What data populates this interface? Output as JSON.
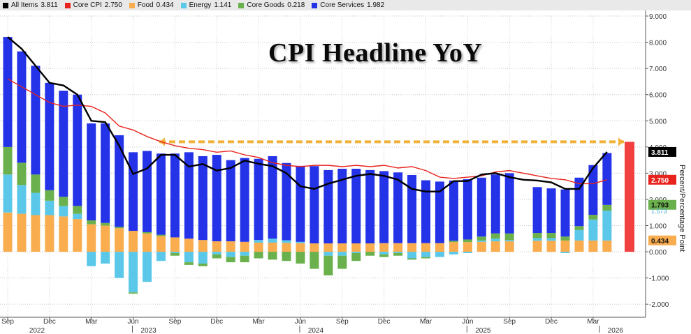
{
  "legend": [
    {
      "label": "All Items",
      "value": "3.811",
      "color": "#000000"
    },
    {
      "label": "Core CPI",
      "value": "2.750",
      "color": "#e8231d"
    },
    {
      "label": "Food",
      "value": "0.434",
      "color": "#f9ad4f"
    },
    {
      "label": "Energy",
      "value": "1.141",
      "color": "#5bc8ea"
    },
    {
      "label": "Core Goods",
      "value": "0.218",
      "color": "#6ab04c"
    },
    {
      "label": "Core Services",
      "value": "1.982",
      "color": "#2432e8"
    }
  ],
  "title": "CPI Headline YoY",
  "ylabel": "Percent/Percentage Point",
  "chart_data": {
    "type": "bar",
    "stacked": true,
    "ylim": [
      -2.5,
      9.0
    ],
    "yticks": [
      "9.000",
      "8.000",
      "7.000",
      "6.000",
      "5.000",
      "4.000",
      "3.000",
      "2.000",
      "1.000",
      "0.000",
      "-1.000",
      "-2.000"
    ],
    "ytick_values": [
      9,
      8,
      7,
      6,
      5,
      4,
      3,
      2,
      1,
      0,
      -1,
      -2
    ],
    "month_labels": [
      "Sep",
      "Dec",
      "Mar",
      "Jun",
      "Sep",
      "Dec",
      "Mar",
      "Jun",
      "Sep",
      "Dec",
      "Mar",
      "Jun",
      "Sep",
      "Dec",
      "Mar"
    ],
    "month_label_index": [
      0,
      3,
      6,
      9,
      12,
      15,
      18,
      21,
      24,
      27,
      30,
      33,
      36,
      39,
      42
    ],
    "year_labels": [
      "2022",
      "2023",
      "2024",
      "2025",
      "2026"
    ],
    "year_label_index": [
      1,
      9,
      21,
      33,
      42.5
    ],
    "periods": 44,
    "series": [
      {
        "name": "Food",
        "color": "#f9ad4f",
        "values": [
          1.5,
          1.45,
          1.4,
          1.4,
          1.35,
          1.25,
          1.05,
          1.0,
          0.9,
          0.8,
          0.7,
          0.6,
          0.55,
          0.5,
          0.45,
          0.4,
          0.4,
          0.38,
          0.35,
          0.35,
          0.34,
          0.33,
          0.32,
          0.32,
          0.32,
          0.32,
          0.32,
          0.33,
          0.33,
          0.33,
          0.33,
          0.33,
          0.37,
          0.37,
          0.38,
          0.4,
          0.4,
          null,
          0.42,
          0.42,
          0.43,
          0.43,
          0.43,
          0.43
        ]
      },
      {
        "name": "Energy",
        "color": "#5bc8ea",
        "values": [
          1.45,
          1.1,
          0.85,
          0.55,
          0.4,
          0.2,
          -0.55,
          -0.45,
          -1.0,
          -1.55,
          -1.15,
          -0.35,
          -0.05,
          -0.4,
          -0.45,
          -0.1,
          -0.2,
          -0.15,
          0.1,
          0.15,
          0.1,
          0.05,
          0.0,
          -0.15,
          -0.15,
          -0.05,
          0.0,
          -0.1,
          -0.05,
          -0.25,
          -0.2,
          -0.2,
          -0.1,
          -0.05,
          0.05,
          0.1,
          0.05,
          null,
          0.1,
          0.1,
          -0.05,
          0.4,
          0.8,
          1.14
        ]
      },
      {
        "name": "Core Goods",
        "color": "#6ab04c",
        "values": [
          1.05,
          0.85,
          0.7,
          0.4,
          0.35,
          0.3,
          0.15,
          0.1,
          0.05,
          -0.05,
          0.05,
          0.05,
          -0.1,
          -0.1,
          -0.1,
          -0.15,
          -0.2,
          -0.25,
          -0.25,
          -0.3,
          -0.35,
          -0.45,
          -0.65,
          -0.75,
          -0.5,
          -0.3,
          -0.15,
          -0.1,
          -0.1,
          -0.05,
          -0.05,
          0.0,
          0.05,
          0.1,
          0.15,
          0.2,
          0.25,
          null,
          0.2,
          0.2,
          0.15,
          0.15,
          0.18,
          0.22
        ]
      },
      {
        "name": "Core Services",
        "color": "#2432e8",
        "values": [
          4.2,
          4.25,
          4.15,
          4.1,
          4.05,
          4.25,
          3.7,
          3.8,
          3.5,
          3.0,
          3.1,
          3.1,
          3.2,
          3.3,
          3.2,
          3.3,
          3.1,
          3.2,
          3.1,
          3.15,
          2.95,
          2.9,
          2.95,
          2.8,
          2.85,
          2.85,
          2.8,
          2.75,
          2.7,
          2.6,
          2.4,
          2.35,
          2.3,
          2.3,
          2.25,
          2.25,
          2.3,
          null,
          1.75,
          1.7,
          1.8,
          1.85,
          1.9,
          1.98
        ]
      }
    ],
    "lines": [
      {
        "name": "All Items",
        "color": "#000000",
        "values": [
          8.2,
          7.75,
          7.1,
          6.45,
          6.35,
          6.0,
          5.0,
          4.95,
          4.05,
          2.97,
          3.18,
          3.7,
          3.7,
          3.25,
          3.35,
          3.1,
          3.2,
          3.48,
          3.36,
          3.27,
          3.0,
          2.5,
          2.4,
          2.6,
          2.75,
          2.9,
          2.97,
          2.9,
          2.75,
          2.4,
          2.3,
          2.3,
          2.7,
          2.7,
          2.95,
          3.0,
          2.85,
          2.75,
          2.72,
          2.65,
          2.4,
          2.4,
          3.2,
          3.81
        ]
      },
      {
        "name": "Core CPI",
        "color": "#e8231d",
        "values": [
          6.6,
          6.3,
          6.0,
          5.7,
          5.55,
          5.6,
          5.55,
          5.3,
          4.8,
          4.65,
          4.4,
          4.2,
          4.05,
          3.95,
          3.9,
          3.8,
          3.85,
          3.7,
          3.6,
          3.4,
          3.3,
          3.25,
          3.3,
          3.3,
          3.25,
          3.3,
          3.25,
          3.3,
          3.2,
          3.25,
          3.1,
          2.85,
          2.8,
          2.85,
          2.9,
          3.05,
          3.1,
          3.0,
          2.9,
          2.8,
          2.75,
          2.6,
          2.6,
          2.75
        ]
      }
    ],
    "reference_line_value": 4.2,
    "highlight_bar_value": 4.2,
    "value_boxes": [
      {
        "value": "3.811",
        "color": "#000000",
        "text_color": "#ffffff"
      },
      {
        "value": "2.750",
        "color": "#e8231d",
        "text_color": "#ffffff"
      },
      {
        "value": "1.793",
        "color": "#6ab04c",
        "text_color": "#111111"
      },
      {
        "value": "0.434",
        "color": "#f9ad4f",
        "text_color": "#111111"
      }
    ],
    "value_box_positions_y": [
      3.811,
      2.75,
      1.793,
      0.434
    ],
    "partial_label": "1.573"
  }
}
